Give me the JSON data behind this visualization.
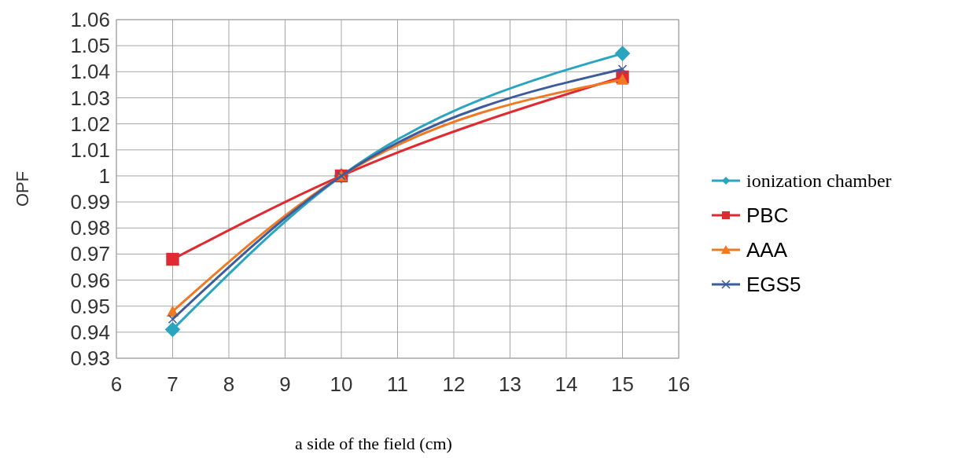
{
  "chart_data": {
    "type": "line",
    "xlabel": "a side of the field (cm)",
    "ylabel": "OPF",
    "x": [
      7,
      10,
      15
    ],
    "series": [
      {
        "name": "ionization chamber",
        "color": "#2aa5c0",
        "marker": "diamond",
        "values": [
          0.941,
          1.0,
          1.047
        ]
      },
      {
        "name": "PBC",
        "color": "#e02a32",
        "marker": "square",
        "values": [
          0.968,
          1.0,
          1.038
        ]
      },
      {
        "name": "AAA",
        "color": "#f07a22",
        "marker": "triangle",
        "values": [
          0.948,
          1.0,
          1.037
        ]
      },
      {
        "name": "EGS5",
        "color": "#3d5c9c",
        "marker": "cross",
        "values": [
          0.945,
          1.0,
          1.041
        ]
      }
    ],
    "xlim": [
      6,
      16
    ],
    "xticks": [
      6,
      7,
      8,
      9,
      10,
      11,
      12,
      13,
      14,
      15,
      16
    ],
    "ylim": [
      0.93,
      1.06
    ],
    "yticks": [
      0.93,
      0.94,
      0.95,
      0.96,
      0.97,
      0.98,
      0.99,
      1,
      1.01,
      1.02,
      1.03,
      1.04,
      1.05,
      1.06
    ],
    "grid": true,
    "legend": "right"
  }
}
